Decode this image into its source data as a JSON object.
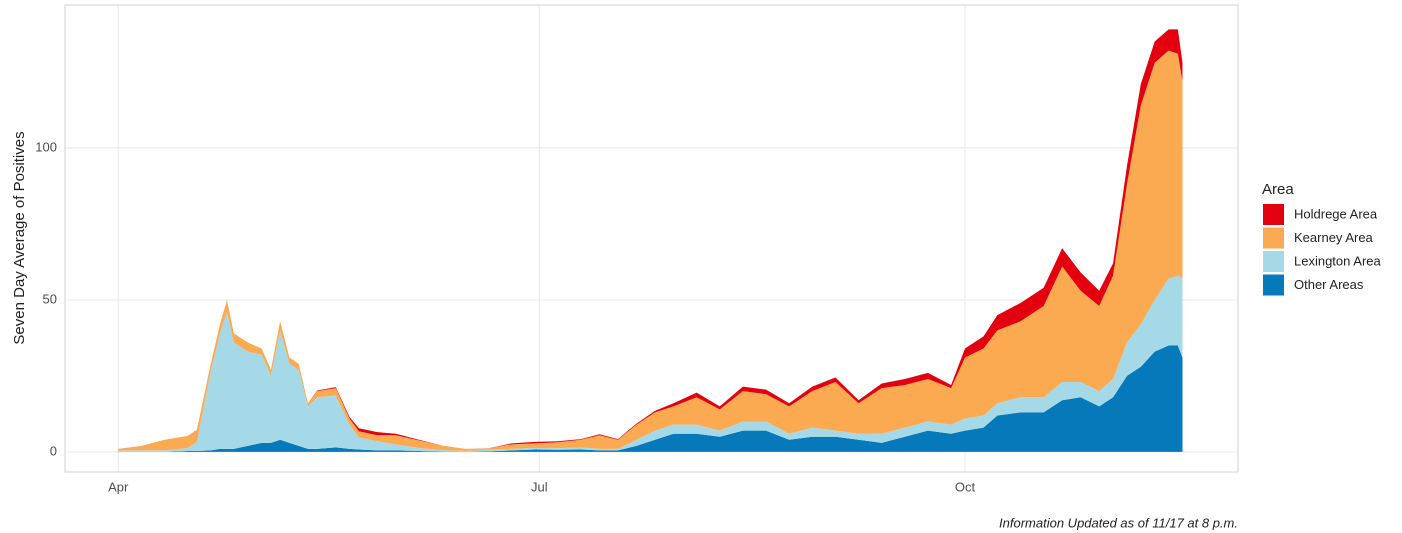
{
  "chart_data": {
    "type": "area",
    "stacked": true,
    "y_label": "Seven Day Average of Positives",
    "legend_title": "Area",
    "caption": "Information Updated as of 11/17 at 8 p.m.",
    "x": [
      0,
      5,
      10,
      15,
      17,
      20,
      22,
      23.5,
      25,
      28,
      31,
      33,
      35,
      37,
      39,
      41,
      43,
      47,
      50,
      52,
      56,
      60,
      65,
      70,
      75,
      80,
      85,
      90,
      95,
      100,
      104,
      108,
      112,
      116,
      120,
      125,
      130,
      135,
      140,
      145,
      150,
      155,
      160,
      165,
      170,
      175,
      180,
      183,
      187,
      190,
      195,
      200,
      204,
      208,
      212,
      215,
      218,
      221,
      224,
      227,
      229,
      230
    ],
    "series": [
      {
        "name": "Holdrege Area",
        "color": "#e3000f",
        "values": [
          0,
          0,
          0,
          0,
          0,
          0,
          0,
          0,
          0,
          0,
          0,
          0,
          0,
          0,
          0,
          0,
          0.2,
          0.3,
          0.5,
          1,
          1,
          0.5,
          0.2,
          0,
          0,
          0,
          0.3,
          0.5,
          0.3,
          0.2,
          0.3,
          0.2,
          0.3,
          0.5,
          1,
          1.5,
          1,
          1.5,
          1.5,
          1,
          1.5,
          1.5,
          1,
          1.5,
          2,
          2,
          1,
          3,
          4,
          5,
          6,
          6,
          6,
          6,
          5,
          4,
          6,
          7,
          7,
          7,
          8,
          6
        ]
      },
      {
        "name": "Kearney Area",
        "color": "#fbaa52",
        "values": [
          0.5,
          1.5,
          3.5,
          4,
          4,
          2.5,
          3,
          4,
          3,
          3,
          2,
          2,
          3,
          2,
          2,
          1,
          2,
          2.5,
          2,
          2,
          2,
          3,
          2.5,
          1.5,
          0.7,
          0.5,
          1.5,
          1.5,
          2,
          2.5,
          4.5,
          3,
          5,
          6,
          6,
          9,
          7,
          10,
          9,
          9,
          12,
          16,
          10,
          15,
          14,
          14,
          12,
          20,
          22,
          24,
          25,
          30,
          38,
          30,
          28,
          34,
          52,
          72,
          78,
          75,
          73,
          65
        ]
      },
      {
        "name": "Lexington Area",
        "color": "#a5d9e8",
        "values": [
          0.5,
          0.5,
          0.5,
          1,
          3,
          26,
          38,
          45,
          35,
          31,
          29,
          22,
          36,
          26,
          25,
          14,
          17,
          17,
          8,
          4,
          3,
          2,
          1,
          0.5,
          0.3,
          0.5,
          0.5,
          0.5,
          0.5,
          0.7,
          0.5,
          0.5,
          2,
          3,
          3,
          3,
          2,
          3,
          3,
          2,
          3,
          2,
          2,
          3,
          3,
          3,
          3,
          4,
          4,
          4,
          5,
          5,
          6,
          5,
          5,
          6,
          11,
          14,
          17,
          22,
          23,
          26
        ]
      },
      {
        "name": "Other Areas",
        "color": "#0579ba",
        "values": [
          0,
          0,
          0,
          0.3,
          0.3,
          0.5,
          1,
          1,
          1,
          2,
          3,
          3,
          4,
          3,
          2,
          1,
          1,
          1.5,
          1,
          0.8,
          0.5,
          0.5,
          0.3,
          0.1,
          0,
          0.2,
          0.5,
          0.8,
          0.7,
          0.8,
          0.5,
          0.5,
          2,
          4,
          6,
          6,
          5,
          7,
          7,
          4,
          5,
          5,
          4,
          3,
          5,
          7,
          6,
          7,
          8,
          12,
          13,
          13,
          17,
          18,
          15,
          18,
          25,
          28,
          33,
          35,
          35,
          31
        ]
      }
    ],
    "xlim": [
      -11.5,
      242
    ],
    "xticks": [
      {
        "value": 0,
        "label": "Apr"
      },
      {
        "value": 91,
        "label": "Jul"
      },
      {
        "value": 183,
        "label": "Oct"
      }
    ],
    "ylim": [
      -6.6,
      147
    ],
    "yticks": [
      0,
      50,
      100
    ],
    "grid": true,
    "legend": "right"
  }
}
